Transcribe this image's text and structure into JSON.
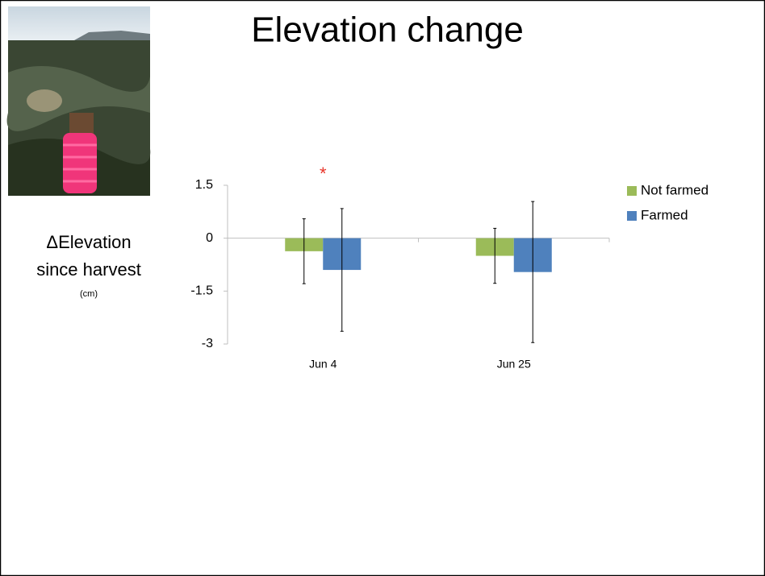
{
  "chart_data": {
    "type": "bar",
    "title": "Elevation change",
    "y_label_lines": [
      "ΔElevation",
      "since harvest"
    ],
    "y_unit": "(cm)",
    "categories": [
      "Jun 4",
      "Jun 25"
    ],
    "series": [
      {
        "name": "Not farmed",
        "color": "#9bbb59",
        "values": [
          -0.37,
          -0.5
        ],
        "errors": [
          0.92,
          0.78
        ]
      },
      {
        "name": "Farmed",
        "color": "#4f81bd",
        "values": [
          -0.9,
          -0.96
        ],
        "errors": [
          1.74,
          2.0
        ]
      }
    ],
    "annotation": "*",
    "annotation_color": "#e8352a",
    "ylim": [
      -3,
      1.5
    ],
    "yticks": [
      -3,
      -1.5,
      0,
      1.5
    ],
    "grid": false,
    "legend": "right"
  }
}
